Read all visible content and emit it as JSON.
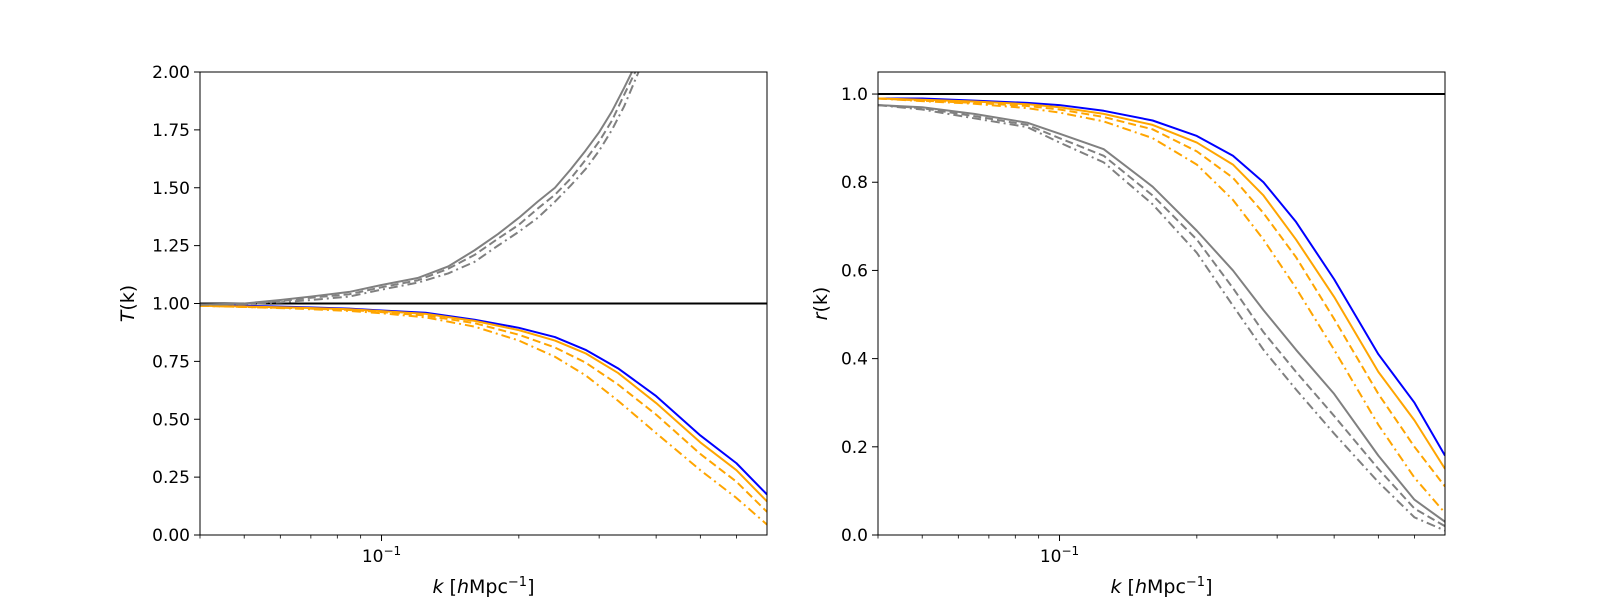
{
  "chart_data": [
    {
      "type": "line",
      "panel": "left",
      "xscale": "log",
      "xlim": [
        0.04,
        0.7
      ],
      "ylim": [
        0,
        2.0
      ],
      "xlabel": {
        "var": "k",
        "bracket_open": " [",
        "unit_var": "h",
        "unit": "Mpc",
        "exp": "−1",
        "bracket_close": "]"
      },
      "ylabel": {
        "var": "T",
        "arg": "(k)"
      },
      "x_major_ticks": [
        {
          "value": 0.1,
          "base": "10",
          "exp": "−1"
        }
      ],
      "y_ticks": [
        {
          "value": 0.0,
          "label": "0.00"
        },
        {
          "value": 0.25,
          "label": "0.25"
        },
        {
          "value": 0.5,
          "label": "0.50"
        },
        {
          "value": 0.75,
          "label": "0.75"
        },
        {
          "value": 1.0,
          "label": "1.00"
        },
        {
          "value": 1.25,
          "label": "1.25"
        },
        {
          "value": 1.5,
          "label": "1.50"
        },
        {
          "value": 1.75,
          "label": "1.75"
        },
        {
          "value": 2.0,
          "label": "2.00"
        }
      ],
      "reference_line": {
        "y": 1.0,
        "color": "#000000"
      },
      "series": [
        {
          "name": "blue solid",
          "color": "#0000ff",
          "style": "solid",
          "x": [
            0.04,
            0.05,
            0.065,
            0.085,
            0.1,
            0.125,
            0.16,
            0.2,
            0.24,
            0.28,
            0.33,
            0.4,
            0.5,
            0.6,
            0.7
          ],
          "y": [
            0.995,
            0.99,
            0.985,
            0.978,
            0.97,
            0.96,
            0.93,
            0.895,
            0.855,
            0.8,
            0.72,
            0.6,
            0.43,
            0.31,
            0.175
          ]
        },
        {
          "name": "orange solid",
          "color": "#ffa500",
          "style": "solid",
          "x": [
            0.04,
            0.05,
            0.065,
            0.085,
            0.1,
            0.125,
            0.16,
            0.2,
            0.24,
            0.28,
            0.33,
            0.4,
            0.5,
            0.6,
            0.7
          ],
          "y": [
            0.99,
            0.987,
            0.982,
            0.975,
            0.967,
            0.955,
            0.925,
            0.885,
            0.84,
            0.785,
            0.7,
            0.57,
            0.4,
            0.28,
            0.145
          ]
        },
        {
          "name": "orange dashed",
          "color": "#ffa500",
          "style": "dashed",
          "x": [
            0.04,
            0.05,
            0.065,
            0.085,
            0.1,
            0.125,
            0.16,
            0.2,
            0.24,
            0.28,
            0.33,
            0.4,
            0.5,
            0.6,
            0.7
          ],
          "y": [
            0.99,
            0.985,
            0.98,
            0.972,
            0.963,
            0.948,
            0.915,
            0.865,
            0.81,
            0.745,
            0.65,
            0.52,
            0.35,
            0.23,
            0.1
          ]
        },
        {
          "name": "orange dashdot",
          "color": "#ffa500",
          "style": "dashdot",
          "x": [
            0.04,
            0.05,
            0.065,
            0.085,
            0.1,
            0.125,
            0.16,
            0.2,
            0.24,
            0.28,
            0.33,
            0.4,
            0.5,
            0.6,
            0.7
          ],
          "y": [
            0.99,
            0.985,
            0.978,
            0.968,
            0.958,
            0.94,
            0.9,
            0.84,
            0.77,
            0.69,
            0.58,
            0.44,
            0.28,
            0.16,
            0.045
          ]
        },
        {
          "name": "gray solid",
          "color": "#808080",
          "style": "solid",
          "x": [
            0.04,
            0.05,
            0.06,
            0.07,
            0.085,
            0.1,
            0.12,
            0.14,
            0.16,
            0.18,
            0.2,
            0.22,
            0.24,
            0.26,
            0.28,
            0.3,
            0.32,
            0.34,
            0.354
          ],
          "y": [
            0.995,
            1.0,
            1.015,
            1.03,
            1.05,
            1.08,
            1.11,
            1.16,
            1.23,
            1.3,
            1.37,
            1.44,
            1.5,
            1.58,
            1.66,
            1.74,
            1.83,
            1.93,
            2.0
          ]
        },
        {
          "name": "gray dashed",
          "color": "#808080",
          "style": "dashed",
          "x": [
            0.04,
            0.05,
            0.06,
            0.07,
            0.085,
            0.1,
            0.12,
            0.14,
            0.16,
            0.18,
            0.2,
            0.22,
            0.24,
            0.26,
            0.28,
            0.3,
            0.32,
            0.34,
            0.36
          ],
          "y": [
            0.995,
            0.998,
            1.01,
            1.025,
            1.04,
            1.07,
            1.1,
            1.15,
            1.21,
            1.28,
            1.34,
            1.41,
            1.47,
            1.54,
            1.62,
            1.7,
            1.79,
            1.9,
            2.0
          ]
        },
        {
          "name": "gray dashdot",
          "color": "#808080",
          "style": "dashdot",
          "x": [
            0.04,
            0.05,
            0.06,
            0.07,
            0.085,
            0.1,
            0.12,
            0.14,
            0.16,
            0.18,
            0.2,
            0.22,
            0.24,
            0.26,
            0.28,
            0.3,
            0.32,
            0.34,
            0.366
          ],
          "y": [
            0.995,
            0.997,
            1.005,
            1.015,
            1.03,
            1.06,
            1.09,
            1.13,
            1.18,
            1.25,
            1.31,
            1.37,
            1.44,
            1.51,
            1.58,
            1.66,
            1.75,
            1.85,
            2.0
          ]
        }
      ]
    },
    {
      "type": "line",
      "panel": "right",
      "xscale": "log",
      "xlim": [
        0.04,
        0.7
      ],
      "ylim": [
        0,
        1.05
      ],
      "xlabel": {
        "var": "k",
        "bracket_open": " [",
        "unit_var": "h",
        "unit": "Mpc",
        "exp": "−1",
        "bracket_close": "]"
      },
      "ylabel": {
        "var": "r",
        "arg": "(k)"
      },
      "x_major_ticks": [
        {
          "value": 0.1,
          "base": "10",
          "exp": "−1"
        }
      ],
      "y_ticks": [
        {
          "value": 0.0,
          "label": "0.0"
        },
        {
          "value": 0.2,
          "label": "0.2"
        },
        {
          "value": 0.4,
          "label": "0.4"
        },
        {
          "value": 0.6,
          "label": "0.6"
        },
        {
          "value": 0.8,
          "label": "0.8"
        },
        {
          "value": 1.0,
          "label": "1.0"
        }
      ],
      "reference_line": {
        "y": 1.0,
        "color": "#000000"
      },
      "series": [
        {
          "name": "blue solid",
          "color": "#0000ff",
          "style": "solid",
          "x": [
            0.04,
            0.05,
            0.065,
            0.085,
            0.1,
            0.125,
            0.16,
            0.2,
            0.24,
            0.28,
            0.33,
            0.4,
            0.5,
            0.6,
            0.7
          ],
          "y": [
            0.99,
            0.99,
            0.985,
            0.98,
            0.975,
            0.962,
            0.94,
            0.905,
            0.86,
            0.8,
            0.71,
            0.58,
            0.41,
            0.3,
            0.18
          ]
        },
        {
          "name": "orange solid",
          "color": "#ffa500",
          "style": "solid",
          "x": [
            0.04,
            0.05,
            0.065,
            0.085,
            0.1,
            0.125,
            0.16,
            0.2,
            0.24,
            0.28,
            0.33,
            0.4,
            0.5,
            0.6,
            0.7
          ],
          "y": [
            0.99,
            0.987,
            0.983,
            0.977,
            0.97,
            0.955,
            0.93,
            0.89,
            0.84,
            0.77,
            0.67,
            0.54,
            0.37,
            0.26,
            0.15
          ]
        },
        {
          "name": "orange dashed",
          "color": "#ffa500",
          "style": "dashed",
          "x": [
            0.04,
            0.05,
            0.065,
            0.085,
            0.1,
            0.125,
            0.16,
            0.2,
            0.24,
            0.28,
            0.33,
            0.4,
            0.5,
            0.6,
            0.7
          ],
          "y": [
            0.99,
            0.985,
            0.98,
            0.973,
            0.965,
            0.948,
            0.92,
            0.87,
            0.81,
            0.73,
            0.63,
            0.49,
            0.32,
            0.2,
            0.11
          ]
        },
        {
          "name": "orange dashdot",
          "color": "#ffa500",
          "style": "dashdot",
          "x": [
            0.04,
            0.05,
            0.065,
            0.085,
            0.1,
            0.125,
            0.16,
            0.2,
            0.24,
            0.28,
            0.33,
            0.4,
            0.5,
            0.6,
            0.7
          ],
          "y": [
            0.99,
            0.984,
            0.978,
            0.968,
            0.958,
            0.938,
            0.9,
            0.84,
            0.76,
            0.67,
            0.56,
            0.42,
            0.25,
            0.13,
            0.05
          ]
        },
        {
          "name": "gray solid",
          "color": "#808080",
          "style": "solid",
          "x": [
            0.04,
            0.05,
            0.065,
            0.085,
            0.1,
            0.125,
            0.16,
            0.2,
            0.24,
            0.28,
            0.33,
            0.4,
            0.5,
            0.6,
            0.7
          ],
          "y": [
            0.975,
            0.97,
            0.955,
            0.935,
            0.91,
            0.875,
            0.79,
            0.69,
            0.6,
            0.51,
            0.42,
            0.32,
            0.18,
            0.08,
            0.03
          ]
        },
        {
          "name": "gray dashed",
          "color": "#808080",
          "style": "dashed",
          "x": [
            0.04,
            0.05,
            0.065,
            0.085,
            0.1,
            0.125,
            0.16,
            0.2,
            0.24,
            0.28,
            0.33,
            0.4,
            0.5,
            0.6,
            0.7
          ],
          "y": [
            0.975,
            0.968,
            0.95,
            0.93,
            0.9,
            0.86,
            0.77,
            0.67,
            0.56,
            0.46,
            0.37,
            0.27,
            0.15,
            0.06,
            0.02
          ]
        },
        {
          "name": "gray dashdot",
          "color": "#808080",
          "style": "dashdot",
          "x": [
            0.04,
            0.05,
            0.065,
            0.085,
            0.1,
            0.125,
            0.16,
            0.2,
            0.24,
            0.28,
            0.33,
            0.4,
            0.5,
            0.6,
            0.7
          ],
          "y": [
            0.975,
            0.965,
            0.945,
            0.925,
            0.89,
            0.845,
            0.75,
            0.64,
            0.52,
            0.42,
            0.33,
            0.23,
            0.12,
            0.04,
            0.01
          ]
        }
      ]
    }
  ]
}
